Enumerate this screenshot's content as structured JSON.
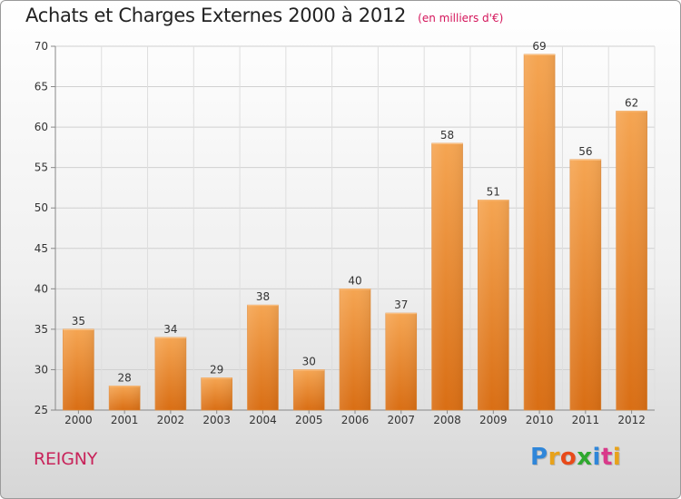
{
  "title": "Achats et Charges Externes 2000 à 2012",
  "subtitle": "(en milliers d'€)",
  "commune": "REIGNY",
  "logo": {
    "letters": [
      "P",
      "r",
      "o",
      "x",
      "i",
      "t",
      "i"
    ],
    "colors": [
      "#2f86d9",
      "#e8a21a",
      "#e84a1a",
      "#2fa82f",
      "#2f86d9",
      "#d93a8a",
      "#e8a21a"
    ]
  },
  "chart_data": {
    "type": "bar",
    "categories": [
      "2000",
      "2001",
      "2002",
      "2003",
      "2004",
      "2005",
      "2006",
      "2007",
      "2008",
      "2009",
      "2010",
      "2011",
      "2012"
    ],
    "values": [
      35,
      28,
      34,
      29,
      38,
      30,
      40,
      37,
      58,
      51,
      69,
      56,
      62
    ],
    "ylim": [
      25,
      70
    ],
    "yticks": [
      25,
      30,
      35,
      40,
      45,
      50,
      55,
      60,
      65,
      70
    ],
    "grid": true,
    "bar_color_light": "#f5a552",
    "bar_color_dark": "#d96e14"
  }
}
